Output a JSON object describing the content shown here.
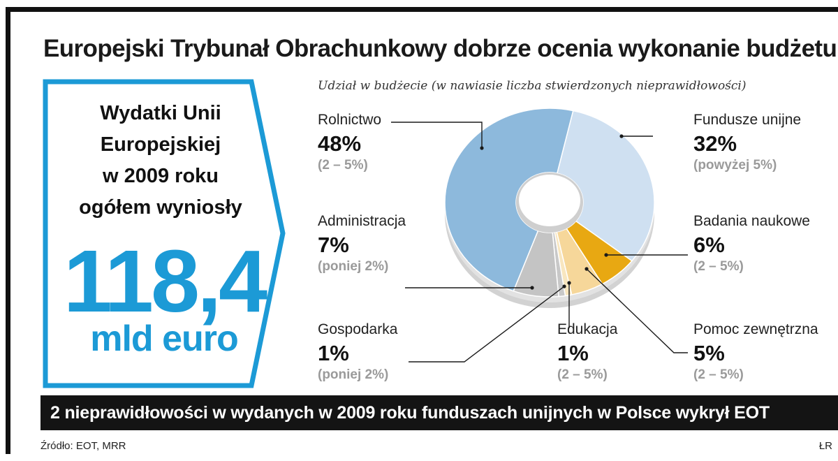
{
  "title": "Europejski Trybunał Obrachunkowy dobrze ocenia wykonanie budżetu UE",
  "callout": {
    "line1": "Wydatki Unii",
    "line2": "Europejskiej",
    "line3": "w 2009 roku",
    "line4": "ogółem wyniosły",
    "amount": "118,4",
    "unit": "mld euro"
  },
  "banner": "2 nieprawidłowości w wydanych w 2009 roku funduszach unijnych w Polsce wykrył EOT",
  "source": "Źródło: EOT, MRR",
  "author": "ŁR",
  "colors": {
    "accent_blue": "#1c9ad6",
    "rolnictwo": "#8db9dc",
    "fundusze": "#cfe0f1",
    "badania": "#e8a812",
    "pomoc": "#f6d79a",
    "edukacja": "#f8e6bf",
    "gospodarka": "#c8c8c8",
    "administracja": "#c4c4c4"
  },
  "chart_data": {
    "type": "pie",
    "subtitle": "Udział w budżecie (w nawiasie liczba stwierdzonych nieprawidłowości)",
    "slices": [
      {
        "name": "Fundusze unijne",
        "value": 32,
        "pct_label": "32%",
        "range_label": "(powyżej 5%)"
      },
      {
        "name": "Badania naukowe",
        "value": 6,
        "pct_label": "6%",
        "range_label": "(2 – 5%)"
      },
      {
        "name": "Pomoc zewnętrzna",
        "value": 5,
        "pct_label": "5%",
        "range_label": "(2 – 5%)"
      },
      {
        "name": "Edukacja",
        "value": 1,
        "pct_label": "1%",
        "range_label": "(2 – 5%)"
      },
      {
        "name": "Gospodarka",
        "value": 1,
        "pct_label": "1%",
        "range_label": "(poniej 2%)"
      },
      {
        "name": "Administracja",
        "value": 7,
        "pct_label": "7%",
        "range_label": "(poniej 2%)"
      },
      {
        "name": "Rolnictwo",
        "value": 48,
        "pct_label": "48%",
        "range_label": "(2 – 5%)"
      }
    ]
  }
}
